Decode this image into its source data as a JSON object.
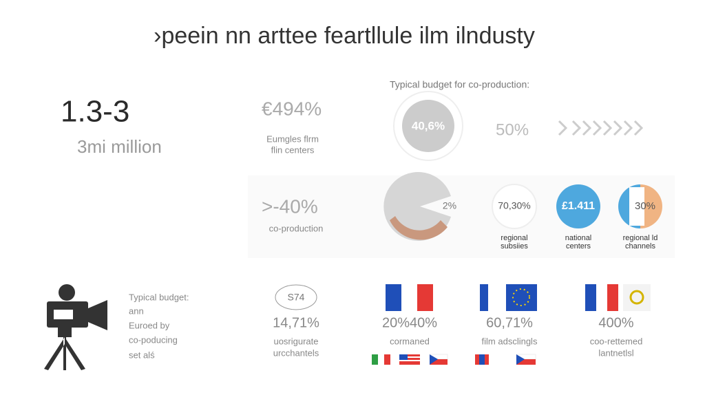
{
  "header": {
    "title": "›peein nn arttee feartllule ilm ilndusty"
  },
  "left": {
    "value": "1.3-3",
    "unit": "3mi million"
  },
  "stats": [
    {
      "value": "€494%",
      "lines": [
        "Eumgles flrm",
        "flin centers"
      ]
    },
    {
      "value": ">-40%",
      "lines": [
        "co-production"
      ]
    }
  ],
  "budget": {
    "caption": "Typical budget for co-production:",
    "circle": "40,6%",
    "side": "50%",
    "pie": "2%",
    "circles": [
      {
        "value": "70,30%",
        "lines": [
          "regional",
          "subsiies"
        ]
      },
      {
        "value": "£1.411",
        "lines": [
          "national",
          "centers"
        ]
      },
      {
        "value": "30%",
        "lines": [
          "regional ld",
          "channels"
        ]
      }
    ]
  },
  "camera": {
    "lines": [
      "Typical budget:",
      "ann",
      "Euroed by",
      "co-poducing",
      "set alś"
    ]
  },
  "columns": [
    {
      "badge": "S74",
      "value": "14,71%",
      "lines": [
        "uosrigurate",
        "urcchantels"
      ]
    },
    {
      "value": "20%40%",
      "lines": [
        "cormaned"
      ]
    },
    {
      "value": "60,71%",
      "lines": [
        "film adsclingls"
      ]
    },
    {
      "value": "400%",
      "lines": [
        "coo-rettemed",
        "lantnetlsl"
      ]
    }
  ]
}
